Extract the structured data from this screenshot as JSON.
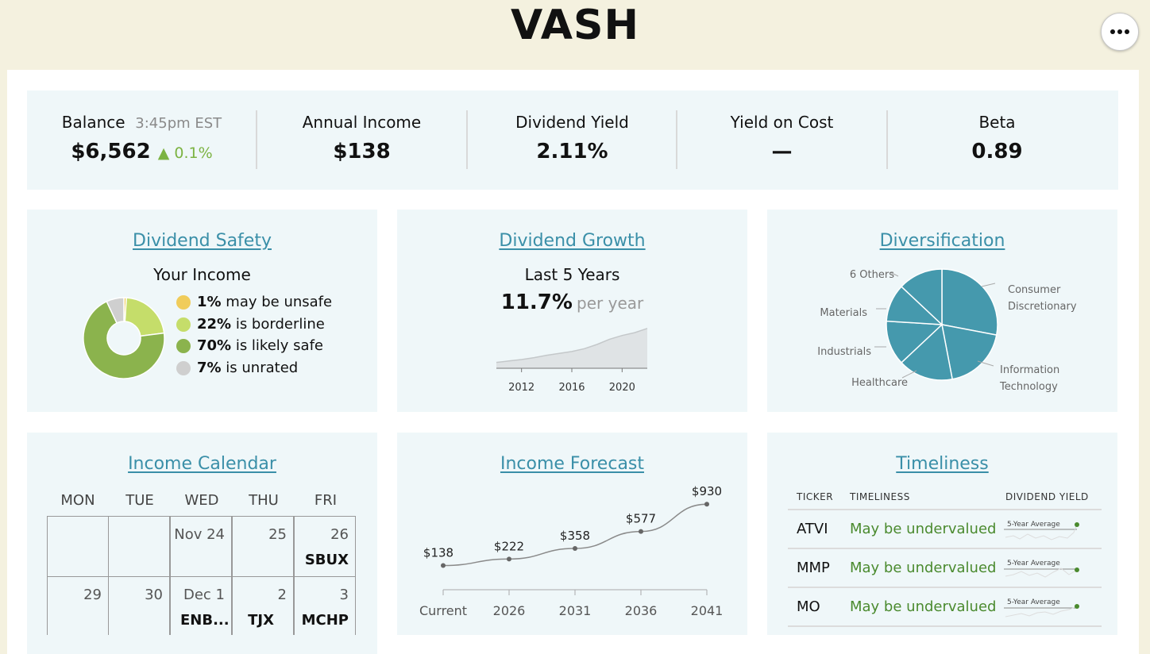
{
  "header": {
    "title": "VASH",
    "more_icon": "more-horizontal-icon"
  },
  "stats": {
    "balance_label": "Balance",
    "balance_time": "3:45pm EST",
    "balance_value": "$6,562",
    "balance_change": "▲ 0.1%",
    "annual_income_label": "Annual Income",
    "annual_income_value": "$138",
    "dividend_yield_label": "Dividend Yield",
    "dividend_yield_value": "2.11%",
    "yield_on_cost_label": "Yield on Cost",
    "yield_on_cost_value": "—",
    "beta_label": "Beta",
    "beta_value": "0.89"
  },
  "colors": {
    "accent": "#3a8fa8",
    "positive": "#7cb342",
    "card_bg": "#eff7f9",
    "page_bg": "#f4f1df",
    "pie_teal": "#4599ad",
    "safety_unsafe": "#f0cc5a",
    "safety_borderline": "#c5dd6a",
    "safety_safe": "#8bb34d",
    "safety_unrated": "#cfcfcf"
  },
  "safety": {
    "title": "Dividend Safety",
    "subtitle": "Your Income",
    "items": [
      {
        "pct": "1%",
        "label": "may be unsafe"
      },
      {
        "pct": "22%",
        "label": "is borderline"
      },
      {
        "pct": "70%",
        "label": "is likely safe"
      },
      {
        "pct": "7%",
        "label": "is unrated"
      }
    ]
  },
  "growth": {
    "title": "Dividend Growth",
    "subtitle": "Last 5 Years",
    "rate": "11.7%",
    "rate_suffix": "per year"
  },
  "diversification": {
    "title": "Diversification",
    "labels": {
      "others": "6 Others",
      "consumer_1": "Consumer",
      "consumer_2": "Discretionary",
      "materials": "Materials",
      "industrials": "Industrials",
      "healthcare": "Healthcare",
      "it_1": "Information",
      "it_2": "Technology"
    }
  },
  "calendar": {
    "title": "Income Calendar",
    "days": [
      "MON",
      "TUE",
      "WED",
      "THU",
      "FRI"
    ],
    "week1": [
      {
        "date": "",
        "ticker": ""
      },
      {
        "date": "",
        "ticker": ""
      },
      {
        "date": "Nov 24",
        "ticker": ""
      },
      {
        "date": "25",
        "ticker": ""
      },
      {
        "date": "26",
        "ticker": "SBUX"
      }
    ],
    "week2": [
      {
        "date": "29",
        "ticker": ""
      },
      {
        "date": "30",
        "ticker": ""
      },
      {
        "date": "Dec 1",
        "ticker": "ENB..."
      },
      {
        "date": "2",
        "ticker": "TJX"
      },
      {
        "date": "3",
        "ticker": "MCHP"
      }
    ]
  },
  "forecast": {
    "title": "Income Forecast"
  },
  "timeliness": {
    "title": "Timeliness",
    "col_ticker": "TICKER",
    "col_timeliness": "TIMELINESS",
    "col_yield": "DIVIDEND YIELD",
    "spark_label": "5-Year Average",
    "rows": [
      {
        "ticker": "ATVI",
        "value": "May be undervalued"
      },
      {
        "ticker": "MMP",
        "value": "May be undervalued"
      },
      {
        "ticker": "MO",
        "value": "May be undervalued"
      }
    ]
  },
  "chart_data": [
    {
      "type": "pie",
      "title": "Dividend Safety",
      "subtitle": "Your Income",
      "categories": [
        "may be unsafe",
        "is borderline",
        "is likely safe",
        "is unrated"
      ],
      "values": [
        1,
        22,
        70,
        7
      ],
      "donut": true
    },
    {
      "type": "area",
      "title": "Dividend Growth",
      "subtitle": "Last 5 Years",
      "x": [
        2010,
        2011,
        2012,
        2013,
        2014,
        2015,
        2016,
        2017,
        2018,
        2019,
        2020,
        2021,
        2022
      ],
      "y": [
        1.0,
        1.06,
        1.12,
        1.2,
        1.3,
        1.38,
        1.46,
        1.58,
        1.76,
        1.98,
        2.14,
        2.26,
        2.44
      ],
      "xticks": [
        "2012",
        "2016",
        "2020"
      ],
      "grid": false
    },
    {
      "type": "pie",
      "title": "Diversification",
      "categories": [
        "Consumer Discretionary",
        "Information Technology",
        "Healthcare",
        "Industrials",
        "Materials",
        "6 Others"
      ],
      "values": [
        28,
        19,
        16,
        13,
        11,
        13
      ]
    },
    {
      "type": "line",
      "title": "Income Forecast",
      "categories": [
        "Current",
        "2026",
        "2031",
        "2036",
        "2041"
      ],
      "values": [
        138,
        222,
        358,
        577,
        930
      ],
      "data_labels": [
        "$138",
        "$222",
        "$358",
        "$577",
        "$930"
      ]
    }
  ]
}
